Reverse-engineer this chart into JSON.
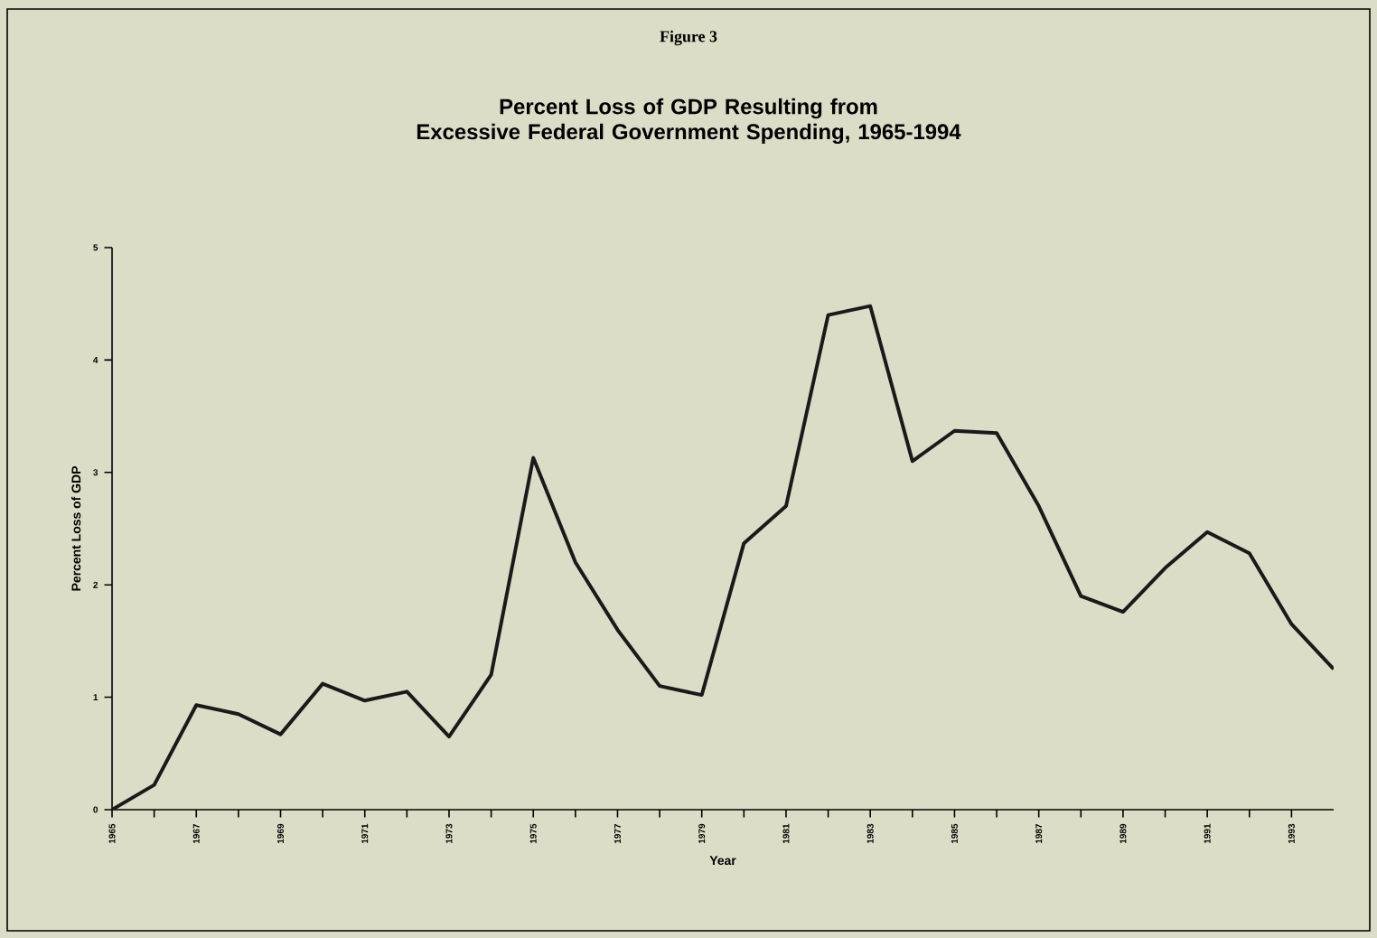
{
  "chart_data": {
    "type": "line",
    "title": "Percent Loss of GDP Resulting from\nExcessive Federal Government Spending,  1965-1994",
    "xlabel": "Year",
    "ylabel": "Percent Loss of GDP",
    "annotations": [
      "Figure 3"
    ],
    "x": [
      1965,
      1966,
      1967,
      1968,
      1969,
      1970,
      1971,
      1972,
      1973,
      1974,
      1975,
      1976,
      1977,
      1978,
      1979,
      1980,
      1981,
      1982,
      1983,
      1984,
      1985,
      1986,
      1987,
      1988,
      1989,
      1990,
      1991,
      1992,
      1993,
      1994
    ],
    "series": [
      {
        "color": "#1a1a1a",
        "values": [
          0,
          0.22,
          0.93,
          0.85,
          0.67,
          1.12,
          0.97,
          1.05,
          0.65,
          1.2,
          3.13,
          2.2,
          1.6,
          1.1,
          1.02,
          2.37,
          2.7,
          4.4,
          4.48,
          3.1,
          3.37,
          3.35,
          2.7,
          1.9,
          1.76,
          2.15,
          2.47,
          2.28,
          1.65,
          1.25
        ]
      }
    ],
    "xlim": [
      1965,
      1994
    ],
    "ylim": [
      0,
      5
    ],
    "yticks": [
      0,
      1,
      2,
      3,
      4,
      5
    ],
    "xticks": [
      1965,
      {
        "value": 1966,
        "label": null
      },
      1967,
      {
        "value": 1968,
        "label": null
      },
      1969,
      {
        "value": 1970,
        "label": null
      },
      1971,
      {
        "value": 1972,
        "label": null
      },
      1973,
      {
        "value": 1974,
        "label": null
      },
      1975,
      {
        "value": 1976,
        "label": null
      },
      1977,
      {
        "value": 1978,
        "label": null
      },
      1979,
      {
        "value": 1980,
        "label": null
      },
      1981,
      {
        "value": 1982,
        "label": null
      },
      1983,
      {
        "value": 1984,
        "label": null
      },
      1985,
      {
        "value": 1986,
        "label": null
      },
      1987,
      {
        "value": 1988,
        "label": null
      },
      1989,
      {
        "value": 1990,
        "label": null
      },
      1991,
      {
        "value": 1992,
        "label": null
      },
      1993
    ],
    "marker": "none",
    "line_style": "solid"
  }
}
